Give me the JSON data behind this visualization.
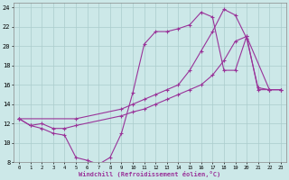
{
  "xlabel": "Windchill (Refroidissement éolien,°C)",
  "background_color": "#cce8e8",
  "grid_color": "#aacccc",
  "line_color": "#993399",
  "xlim_min": -0.5,
  "xlim_max": 23.5,
  "ylim_min": 8,
  "ylim_max": 24.5,
  "xticks": [
    0,
    1,
    2,
    3,
    4,
    5,
    6,
    7,
    8,
    9,
    10,
    11,
    12,
    13,
    14,
    15,
    16,
    17,
    18,
    19,
    20,
    21,
    22,
    23
  ],
  "yticks": [
    8,
    10,
    12,
    14,
    16,
    18,
    20,
    22,
    24
  ],
  "line1_x": [
    0,
    1,
    2,
    3,
    4,
    5,
    6,
    7,
    8,
    9,
    10,
    11,
    12,
    13,
    14,
    15,
    16,
    17,
    18,
    19,
    20,
    21,
    22,
    23
  ],
  "line1_y": [
    12.5,
    11.8,
    11.5,
    11.0,
    10.8,
    8.5,
    8.2,
    7.8,
    8.5,
    11.0,
    15.2,
    20.2,
    21.5,
    21.5,
    21.8,
    22.2,
    23.5,
    23.0,
    17.5,
    17.5,
    21.0,
    15.5,
    15.5,
    15.5
  ],
  "line2_x": [
    0,
    1,
    2,
    3,
    4,
    5,
    9,
    10,
    11,
    12,
    13,
    14,
    15,
    16,
    17,
    18,
    19,
    20,
    22,
    23
  ],
  "line2_y": [
    12.5,
    11.8,
    12.0,
    11.5,
    11.5,
    11.8,
    12.8,
    13.2,
    13.5,
    14.0,
    14.5,
    15.0,
    15.5,
    16.0,
    17.0,
    18.5,
    20.5,
    21.0,
    15.5,
    15.5
  ],
  "line3_x": [
    0,
    5,
    9,
    10,
    11,
    12,
    13,
    14,
    15,
    16,
    17,
    18,
    19,
    20,
    21,
    22,
    23
  ],
  "line3_y": [
    12.5,
    12.5,
    13.5,
    14.0,
    14.5,
    15.0,
    15.5,
    16.0,
    17.5,
    19.5,
    21.5,
    23.8,
    23.2,
    20.8,
    15.7,
    15.5,
    15.5
  ]
}
